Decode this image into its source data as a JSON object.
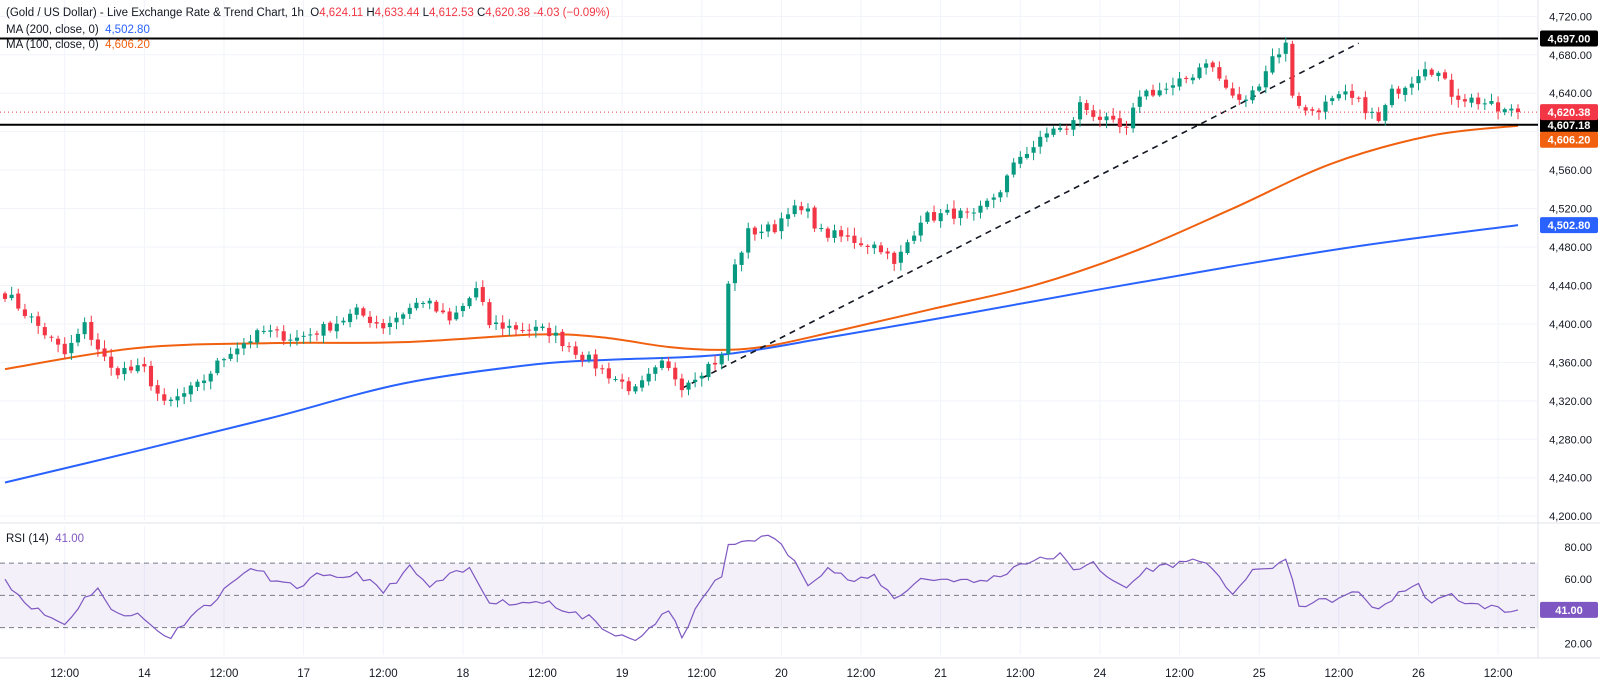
{
  "header": {
    "symbol": "(Gold / US Dollar) - Live Exchange Rate & Trend Chart, 1h",
    "open_label": "O",
    "open": "4,624.11",
    "high_label": "H",
    "high": "4,633.44",
    "low_label": "L",
    "low": "4,612.53",
    "close_label": "C",
    "close": "4,620.38",
    "change": "-4.03 (−0.09%)"
  },
  "indicators": {
    "ma200": {
      "label": "MA (200, close, 0)",
      "value": "4,502.80",
      "color": "#2962ff"
    },
    "ma100": {
      "label": "MA (100, close, 0)",
      "value": "4,606.20",
      "color": "#f0600f"
    },
    "rsi": {
      "label": "RSI (14)",
      "value": "41.00",
      "color": "#7e57c2"
    }
  },
  "colors": {
    "up": "#089981",
    "down": "#f23645",
    "text": "#131722",
    "grid": "#f0f3fa"
  },
  "chart_data": {
    "type": "candlestick",
    "timeframe": "1h",
    "price_axis": {
      "ticks": [
        "4,720.00",
        "4,680.00",
        "4,640.00",
        "4,600.00",
        "4,560.00",
        "4,520.00",
        "4,480.00",
        "4,440.00",
        "4,400.00",
        "4,360.00",
        "4,320.00",
        "4,280.00",
        "4,240.00",
        "4,200.00"
      ],
      "tick_values": [
        4720,
        4680,
        4640,
        4600,
        4560,
        4520,
        4480,
        4440,
        4400,
        4360,
        4320,
        4280,
        4240,
        4200
      ],
      "range": [
        4196,
        4737
      ]
    },
    "time_axis": {
      "labels": [
        "12:00",
        "14",
        "12:00",
        "17",
        "12:00",
        "18",
        "12:00",
        "19",
        "12:00",
        "20",
        "12:00",
        "21",
        "12:00",
        "24",
        "12:00",
        "25",
        "12:00",
        "26",
        "12:00"
      ],
      "bar_index": [
        9,
        21,
        33,
        45,
        57,
        69,
        81,
        93,
        105,
        117,
        129,
        141,
        153,
        165,
        177,
        189,
        201,
        213,
        225
      ]
    },
    "candles_summary": {
      "count": 229,
      "first_open": 4432,
      "low": 4312,
      "high": 4697,
      "last_close": 4620.38
    },
    "waypoints": [
      [
        0,
        4432
      ],
      [
        4,
        4405
      ],
      [
        9,
        4368
      ],
      [
        12,
        4398
      ],
      [
        16,
        4352
      ],
      [
        21,
        4352
      ],
      [
        24,
        4315
      ],
      [
        29,
        4335
      ],
      [
        34,
        4373
      ],
      [
        39,
        4392
      ],
      [
        44,
        4385
      ],
      [
        48,
        4395
      ],
      [
        53,
        4412
      ],
      [
        57,
        4398
      ],
      [
        60,
        4412
      ],
      [
        63,
        4425
      ],
      [
        67,
        4402
      ],
      [
        71,
        4435
      ],
      [
        73,
        4400
      ],
      [
        78,
        4395
      ],
      [
        82,
        4392
      ],
      [
        86,
        4372
      ],
      [
        90,
        4352
      ],
      [
        95,
        4330
      ],
      [
        99,
        4357
      ],
      [
        101,
        4345
      ],
      [
        102,
        4337
      ],
      [
        106,
        4357
      ],
      [
        108,
        4365
      ],
      [
        109,
        4442
      ],
      [
        112,
        4495
      ],
      [
        116,
        4500
      ],
      [
        118,
        4520
      ],
      [
        121,
        4515
      ],
      [
        123,
        4495
      ],
      [
        128,
        4487
      ],
      [
        132,
        4480
      ],
      [
        134,
        4460
      ],
      [
        138,
        4510
      ],
      [
        143,
        4515
      ],
      [
        146,
        4510
      ],
      [
        150,
        4540
      ],
      [
        153,
        4575
      ],
      [
        156,
        4590
      ],
      [
        158,
        4605
      ],
      [
        160,
        4600
      ],
      [
        162,
        4628
      ],
      [
        166,
        4610
      ],
      [
        169,
        4600
      ],
      [
        171,
        4640
      ],
      [
        176,
        4645
      ],
      [
        179,
        4660
      ],
      [
        181,
        4675
      ],
      [
        184,
        4645
      ],
      [
        186,
        4630
      ],
      [
        188,
        4640
      ],
      [
        191,
        4678
      ],
      [
        193,
        4690
      ],
      [
        194,
        4640
      ],
      [
        196,
        4620
      ],
      [
        199,
        4628
      ],
      [
        202,
        4637
      ],
      [
        205,
        4625
      ],
      [
        207,
        4610
      ],
      [
        209,
        4640
      ],
      [
        212,
        4655
      ],
      [
        214,
        4670
      ],
      [
        216,
        4660
      ],
      [
        218,
        4640
      ],
      [
        220,
        4635
      ],
      [
        223,
        4630
      ],
      [
        225,
        4622
      ],
      [
        228,
        4620
      ]
    ],
    "ma100_points": [
      [
        0,
        4353
      ],
      [
        20,
        4375
      ],
      [
        40,
        4380
      ],
      [
        60,
        4381
      ],
      [
        80,
        4389
      ],
      [
        90,
        4386
      ],
      [
        100,
        4376
      ],
      [
        108,
        4373
      ],
      [
        115,
        4377
      ],
      [
        125,
        4392
      ],
      [
        140,
        4416
      ],
      [
        155,
        4440
      ],
      [
        170,
        4475
      ],
      [
        185,
        4520
      ],
      [
        200,
        4567
      ],
      [
        215,
        4596
      ],
      [
        228,
        4606.2
      ]
    ],
    "ma200_points": [
      [
        0,
        4235
      ],
      [
        20,
        4268
      ],
      [
        40,
        4302
      ],
      [
        60,
        4338
      ],
      [
        80,
        4358
      ],
      [
        92,
        4363
      ],
      [
        108,
        4368
      ],
      [
        125,
        4387
      ],
      [
        145,
        4411
      ],
      [
        165,
        4436
      ],
      [
        185,
        4460
      ],
      [
        205,
        4482
      ],
      [
        228,
        4502.8
      ]
    ],
    "horizontal_levels": [
      {
        "value": 4697.0,
        "label": "4,697.00",
        "color": "#000000"
      },
      {
        "value": 4607.18,
        "label": "4,607.18",
        "color": "#000000"
      },
      {
        "value": 4620.38,
        "label": "4,620.38",
        "color": "#f23645",
        "style": "dotted"
      }
    ],
    "ma_labels": [
      {
        "value": 4606.2,
        "label": "4,606.20",
        "color": "#f0600f"
      },
      {
        "value": 4502.8,
        "label": "4,502.80",
        "color": "#2962ff"
      }
    ],
    "trendline": {
      "from": [
        102,
        4333
      ],
      "to": [
        204,
        4692
      ],
      "style": "dashed"
    },
    "rsi": {
      "ticks": [
        "80.00",
        "60.00",
        "20.00"
      ],
      "tick_values": [
        80,
        60,
        20
      ],
      "range": [
        13,
        93
      ],
      "levels": [
        70,
        50,
        30
      ],
      "last_label": "41.00",
      "points": [
        [
          0,
          60
        ],
        [
          3,
          46
        ],
        [
          6,
          38
        ],
        [
          9,
          32
        ],
        [
          12,
          48
        ],
        [
          14,
          55
        ],
        [
          16,
          40
        ],
        [
          20,
          38
        ],
        [
          23,
          28
        ],
        [
          25,
          24
        ],
        [
          28,
          38
        ],
        [
          32,
          48
        ],
        [
          35,
          62
        ],
        [
          38,
          66
        ],
        [
          41,
          58
        ],
        [
          44,
          55
        ],
        [
          47,
          62
        ],
        [
          50,
          60
        ],
        [
          53,
          64
        ],
        [
          57,
          52
        ],
        [
          61,
          67
        ],
        [
          64,
          55
        ],
        [
          67,
          62
        ],
        [
          70,
          66
        ],
        [
          73,
          47
        ],
        [
          77,
          45
        ],
        [
          82,
          47
        ],
        [
          84,
          40
        ],
        [
          88,
          36
        ],
        [
          90,
          28
        ],
        [
          93,
          24
        ],
        [
          95,
          22
        ],
        [
          98,
          33
        ],
        [
          100,
          40
        ],
        [
          102,
          25
        ],
        [
          105,
          47
        ],
        [
          106,
          54
        ],
        [
          108,
          62
        ],
        [
          109,
          80
        ],
        [
          112,
          85
        ],
        [
          116,
          86
        ],
        [
          119,
          70
        ],
        [
          121,
          58
        ],
        [
          124,
          67
        ],
        [
          128,
          58
        ],
        [
          131,
          62
        ],
        [
          134,
          48
        ],
        [
          138,
          60
        ],
        [
          143,
          60
        ],
        [
          146,
          58
        ],
        [
          150,
          62
        ],
        [
          153,
          70
        ],
        [
          156,
          72
        ],
        [
          159,
          75
        ],
        [
          161,
          65
        ],
        [
          164,
          72
        ],
        [
          166,
          60
        ],
        [
          169,
          55
        ],
        [
          172,
          66
        ],
        [
          177,
          70
        ],
        [
          180,
          73
        ],
        [
          183,
          60
        ],
        [
          185,
          52
        ],
        [
          188,
          64
        ],
        [
          191,
          68
        ],
        [
          193,
          72
        ],
        [
          195,
          44
        ],
        [
          198,
          46
        ],
        [
          201,
          48
        ],
        [
          204,
          52
        ],
        [
          207,
          40
        ],
        [
          210,
          52
        ],
        [
          213,
          56
        ],
        [
          215,
          45
        ],
        [
          218,
          50
        ],
        [
          221,
          44
        ],
        [
          224,
          43
        ],
        [
          226,
          40
        ],
        [
          228,
          41
        ]
      ]
    }
  }
}
